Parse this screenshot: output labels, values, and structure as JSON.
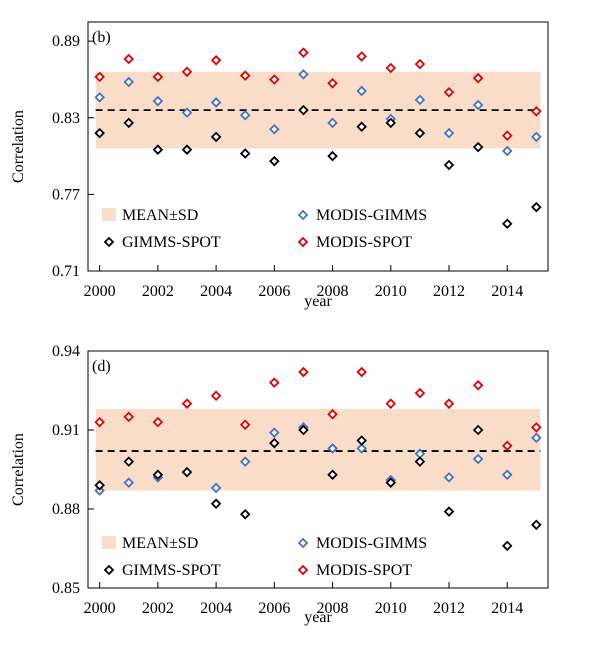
{
  "colors": {
    "band": "#f9ddc9",
    "modis_gimms": "#4472c4",
    "gimms_spot": "#000000",
    "modis_spot": "#e00000",
    "mean_line": "#000000"
  },
  "chart_data": [
    {
      "type": "scatter",
      "panel_label": "(b)",
      "xlabel": "year",
      "ylabel": "Correlation",
      "xlim": [
        1999.6,
        2015.4
      ],
      "ylim": [
        0.71,
        0.905
      ],
      "xticks": [
        "2000",
        "2002",
        "2004",
        "2006",
        "2008",
        "2010",
        "2012",
        "2014"
      ],
      "yticks": [
        "0.71",
        "0.77",
        "0.83",
        "0.89"
      ],
      "band": {
        "label": "MEAN±SD",
        "low": 0.806,
        "high": 0.866
      },
      "mean": 0.836,
      "x": [
        2000,
        2001,
        2002,
        2003,
        2004,
        2005,
        2006,
        2007,
        2008,
        2009,
        2010,
        2011,
        2012,
        2013,
        2014,
        2015
      ],
      "series": [
        {
          "name": "MODIS-GIMMS",
          "values": [
            0.846,
            0.858,
            0.843,
            0.834,
            0.842,
            0.832,
            0.821,
            0.864,
            0.826,
            0.851,
            0.829,
            0.844,
            0.818,
            0.84,
            0.804,
            0.815
          ]
        },
        {
          "name": "GIMMS-SPOT",
          "values": [
            0.818,
            0.826,
            0.805,
            0.805,
            0.815,
            0.802,
            0.796,
            0.836,
            0.8,
            0.823,
            0.826,
            0.818,
            0.793,
            0.807,
            0.747,
            0.76
          ]
        },
        {
          "name": "MODIS-SPOT",
          "values": [
            0.862,
            0.876,
            0.862,
            0.866,
            0.875,
            0.863,
            0.86,
            0.881,
            0.857,
            0.878,
            0.869,
            0.872,
            0.85,
            0.861,
            0.816,
            0.835
          ]
        }
      ],
      "legend": [
        {
          "label": "MEAN±SD",
          "kind": "band"
        },
        {
          "label": "MODIS-GIMMS",
          "kind": "marker",
          "series": 0
        },
        {
          "label": "GIMMS-SPOT",
          "kind": "marker",
          "series": 1
        },
        {
          "label": "MODIS-SPOT",
          "kind": "marker",
          "series": 2
        }
      ]
    },
    {
      "type": "scatter",
      "panel_label": "(d)",
      "xlabel": "year",
      "ylabel": "Correlation",
      "xlim": [
        1999.6,
        2015.4
      ],
      "ylim": [
        0.85,
        0.94
      ],
      "xticks": [
        "2000",
        "2002",
        "2004",
        "2006",
        "2008",
        "2010",
        "2012",
        "2014"
      ],
      "yticks": [
        "0.85",
        "0.88",
        "0.91",
        "0.94"
      ],
      "band": {
        "label": "MEAN±SD",
        "low": 0.887,
        "high": 0.918
      },
      "mean": 0.902,
      "x": [
        2000,
        2001,
        2002,
        2003,
        2004,
        2005,
        2006,
        2007,
        2008,
        2009,
        2010,
        2011,
        2012,
        2013,
        2014,
        2015
      ],
      "series": [
        {
          "name": "MODIS-GIMMS",
          "values": [
            0.887,
            0.89,
            0.892,
            0.894,
            0.888,
            0.898,
            0.909,
            0.911,
            0.903,
            0.903,
            0.891,
            0.901,
            0.892,
            0.899,
            0.893,
            0.907
          ]
        },
        {
          "name": "GIMMS-SPOT",
          "values": [
            0.889,
            0.898,
            0.893,
            0.894,
            0.882,
            0.878,
            0.905,
            0.91,
            0.893,
            0.906,
            0.89,
            0.898,
            0.879,
            0.91,
            0.866,
            0.874
          ]
        },
        {
          "name": "MODIS-SPOT",
          "values": [
            0.913,
            0.915,
            0.913,
            0.92,
            0.923,
            0.912,
            0.928,
            0.932,
            0.916,
            0.932,
            0.92,
            0.924,
            0.92,
            0.927,
            0.904,
            0.911
          ]
        }
      ],
      "legend": [
        {
          "label": "MEAN±SD",
          "kind": "band"
        },
        {
          "label": "MODIS-GIMMS",
          "kind": "marker",
          "series": 0
        },
        {
          "label": "GIMMS-SPOT",
          "kind": "marker",
          "series": 1
        },
        {
          "label": "MODIS-SPOT",
          "kind": "marker",
          "series": 2
        }
      ]
    }
  ]
}
